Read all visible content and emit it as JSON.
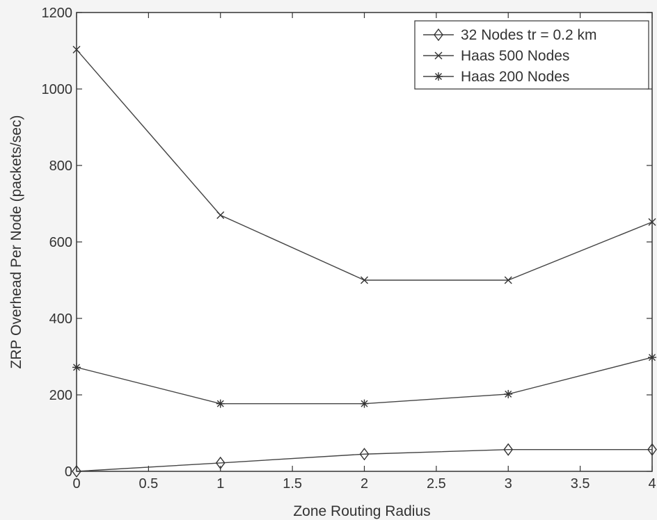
{
  "chart_data": {
    "type": "line",
    "title": "",
    "xlabel": "Zone Routing Radius",
    "ylabel": "ZRP Overhead Per Node (packets/sec)",
    "xlim": [
      0,
      4
    ],
    "ylim": [
      0,
      1200
    ],
    "xticks": [
      "0",
      "0.5",
      "1",
      "1.5",
      "2",
      "2.5",
      "3",
      "3.5",
      "4"
    ],
    "yticks": [
      "0",
      "200",
      "400",
      "600",
      "800",
      "1000",
      "1200"
    ],
    "grid": false,
    "legend_position": "top-right",
    "x": [
      0,
      1,
      2,
      3,
      4
    ],
    "series": [
      {
        "name": "32 Nodes tr = 0.2 km",
        "marker": "diamond",
        "values": [
          0,
          22,
          45,
          57,
          57
        ]
      },
      {
        "name": "Haas 500 Nodes",
        "marker": "x",
        "values": [
          1103,
          670,
          500,
          500,
          652
        ]
      },
      {
        "name": "Haas 200 Nodes",
        "marker": "star",
        "values": [
          272,
          177,
          177,
          202,
          298
        ]
      }
    ]
  }
}
